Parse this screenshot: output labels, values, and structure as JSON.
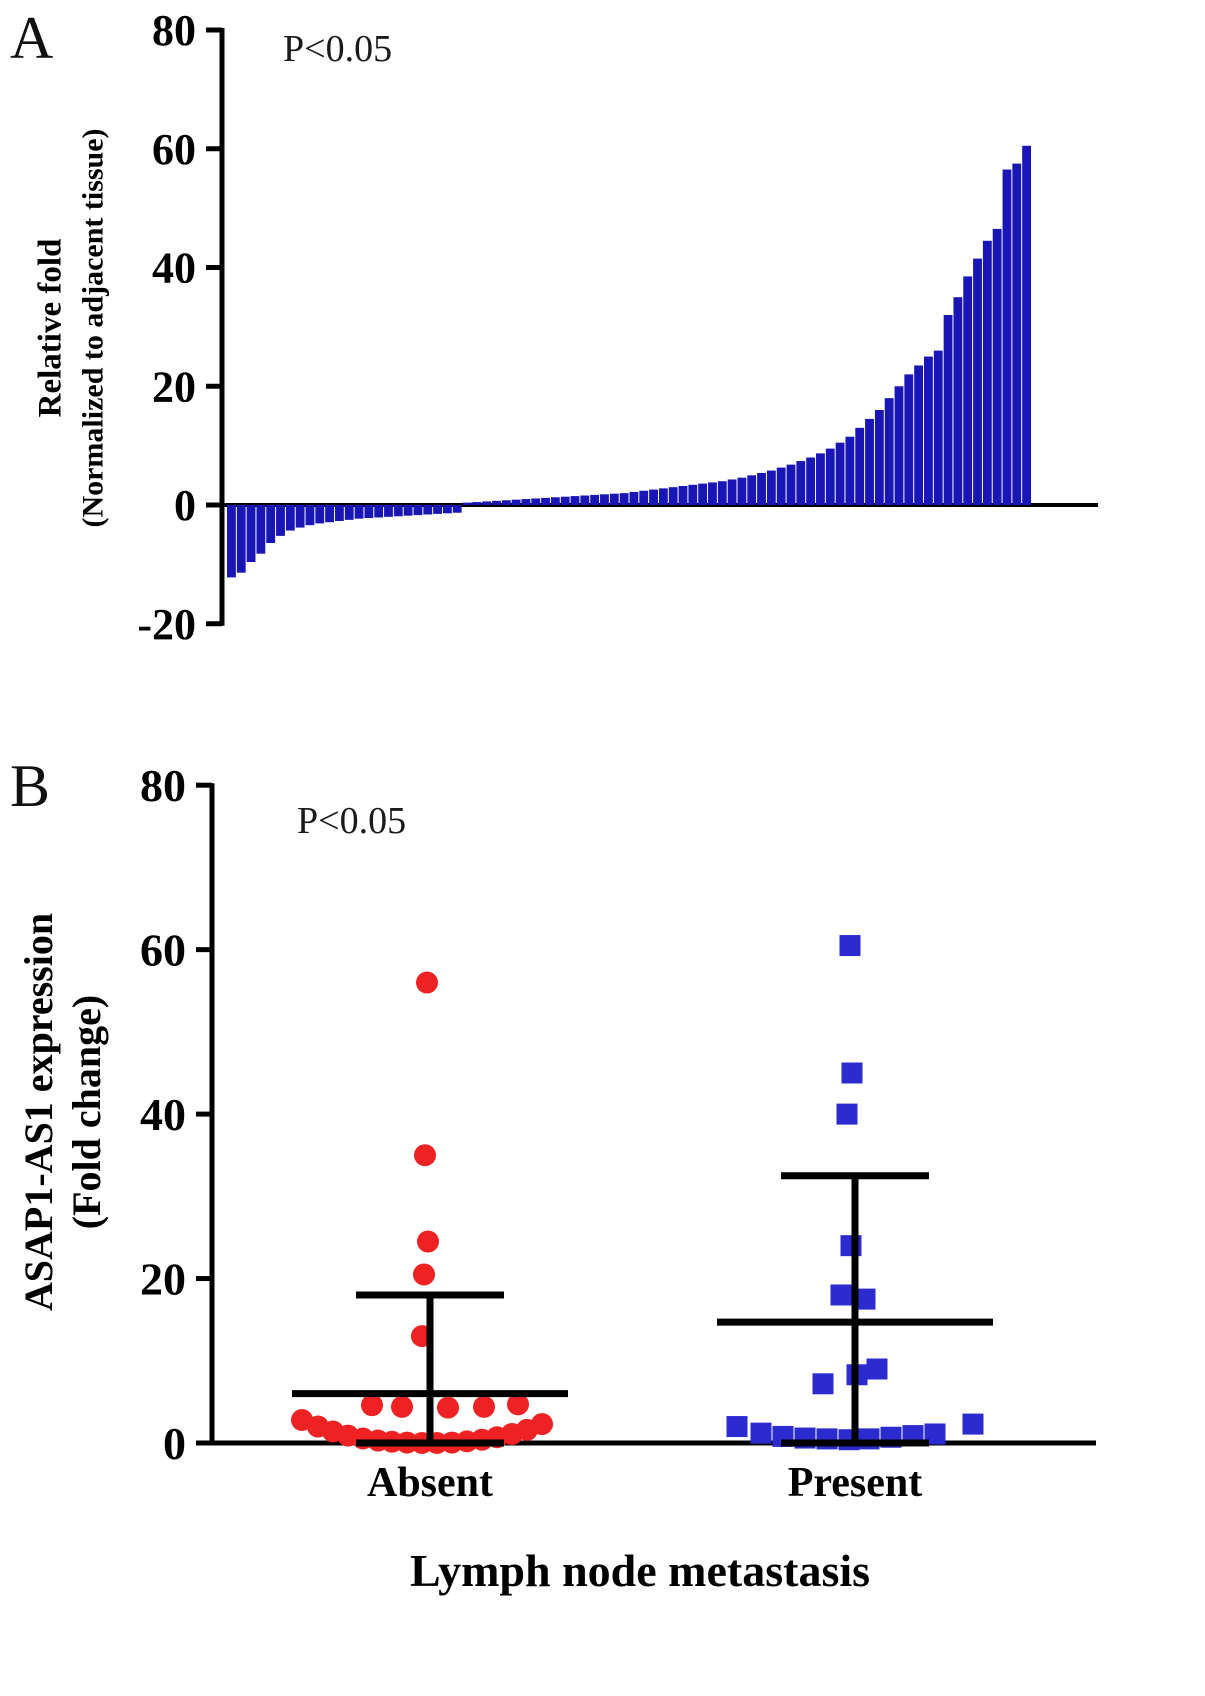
{
  "panels": {
    "a_label": "A",
    "b_label": "B"
  },
  "chart_data": [
    {
      "id": "A",
      "type": "bar",
      "annotation": "P<0.05",
      "ylabel": "Relative fold",
      "ylabel_sub": "(Normalized to adjacent tissue)",
      "xlabel": "",
      "ylim": [
        -20,
        80
      ],
      "yticks": [
        80,
        60,
        40,
        20,
        0,
        -20
      ],
      "grid": false,
      "legend": "none",
      "bar_color": "#1a15b5",
      "axis_color": "#000000",
      "values": [
        -12.2,
        -11.4,
        -9.6,
        -8.2,
        -6.4,
        -5.2,
        -4.3,
        -3.8,
        -3.4,
        -3.1,
        -2.9,
        -2.7,
        -2.5,
        -2.3,
        -2.2,
        -2.1,
        -2.0,
        -1.9,
        -1.8,
        -1.7,
        -1.6,
        -1.5,
        -1.4,
        -1.3,
        0.4,
        0.5,
        0.6,
        0.7,
        0.8,
        0.9,
        1.0,
        1.1,
        1.2,
        1.3,
        1.4,
        1.5,
        1.6,
        1.7,
        1.8,
        1.9,
        2.0,
        2.2,
        2.4,
        2.6,
        2.8,
        3.0,
        3.2,
        3.4,
        3.6,
        3.8,
        4.0,
        4.3,
        4.6,
        5.0,
        5.4,
        5.8,
        6.3,
        6.8,
        7.4,
        8.0,
        8.7,
        9.5,
        10.5,
        11.5,
        13.0,
        14.5,
        16.0,
        18.0,
        20.0,
        22.0,
        23.5,
        25.0,
        26.0,
        32.0,
        35.0,
        38.5,
        41.5,
        44.5,
        46.5,
        56.5,
        57.5,
        60.5
      ]
    },
    {
      "id": "B",
      "type": "scatter",
      "annotation": "P<0.05",
      "ylabel": "ASAP1-AS1 expression",
      "ylabel_sub": "(Fold change)",
      "xlabel": "Lymph node metastasis",
      "ylim": [
        0,
        80
      ],
      "yticks": [
        0,
        20,
        40,
        60,
        80
      ],
      "grid": false,
      "legend": "none",
      "axis_color": "#000000",
      "stat_line_color": "#000000",
      "groups": [
        {
          "name": "Absent",
          "marker": "circle",
          "color": "#ee2222",
          "stats": {
            "mean": 6.0,
            "upper": 18.0,
            "lower": 0.0
          },
          "points": [
            [
              -3,
              56
            ],
            [
              -5,
              35
            ],
            [
              -2,
              24.5
            ],
            [
              -6,
              20.5
            ],
            [
              -8,
              13
            ],
            [
              -58,
              4.6
            ],
            [
              -28,
              4.4
            ],
            [
              18,
              4.3
            ],
            [
              54,
              4.4
            ],
            [
              88,
              4.7
            ],
            [
              -128,
              2.8
            ],
            [
              -112,
              2.0
            ],
            [
              -97,
              1.4
            ],
            [
              -82,
              0.9
            ],
            [
              -67,
              0.55
            ],
            [
              -52,
              0.3
            ],
            [
              -38,
              0.15
            ],
            [
              -23,
              0.05
            ],
            [
              -8,
              0
            ],
            [
              7,
              0
            ],
            [
              22,
              0.05
            ],
            [
              37,
              0.2
            ],
            [
              52,
              0.4
            ],
            [
              67,
              0.7
            ],
            [
              82,
              1.1
            ],
            [
              97,
              1.6
            ],
            [
              112,
              2.3
            ]
          ]
        },
        {
          "name": "Present",
          "marker": "square",
          "color": "#2b2bd0",
          "stats": {
            "mean": 14.7,
            "upper": 32.5,
            "lower": 0.0
          },
          "points": [
            [
              -5,
              60.5
            ],
            [
              -3,
              45
            ],
            [
              -8,
              40
            ],
            [
              -4,
              24
            ],
            [
              -14,
              18
            ],
            [
              10,
              17.5
            ],
            [
              22,
              9
            ],
            [
              2,
              8.3
            ],
            [
              -32,
              7.2
            ],
            [
              -118,
              2.0
            ],
            [
              -94,
              1.2
            ],
            [
              -72,
              0.8
            ],
            [
              -50,
              0.6
            ],
            [
              -28,
              0.5
            ],
            [
              -6,
              0.4
            ],
            [
              14,
              0.5
            ],
            [
              36,
              0.7
            ],
            [
              58,
              0.9
            ],
            [
              80,
              1.1
            ],
            [
              118,
              2.3
            ]
          ]
        }
      ]
    }
  ]
}
